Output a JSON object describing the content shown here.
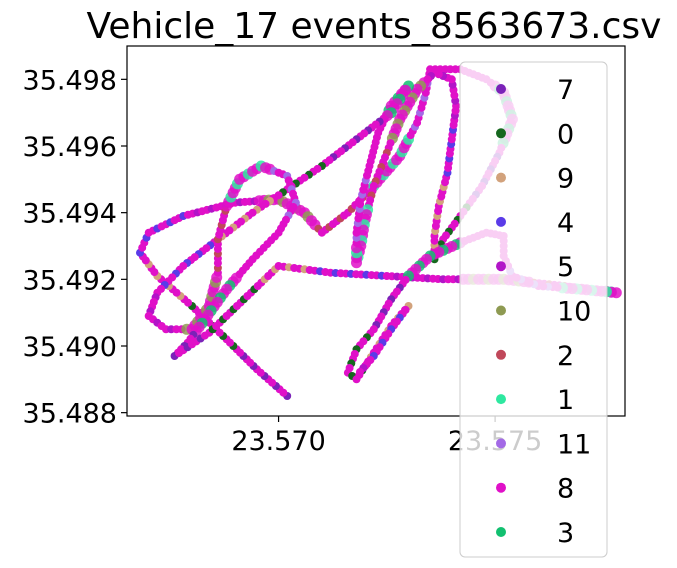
{
  "chart_data": {
    "type": "scatter",
    "title": "Vehicle_17 events_8563673.csv",
    "xlabel": "",
    "ylabel": "",
    "xlim": [
      23.5665,
      23.578
    ],
    "ylim": [
      35.4879,
      35.499
    ],
    "x_ticks": [
      23.57,
      23.575
    ],
    "x_tick_labels": [
      "23.570",
      "23.575"
    ],
    "y_ticks": [
      35.488,
      35.49,
      35.492,
      35.494,
      35.496,
      35.498
    ],
    "y_tick_labels": [
      "35.488",
      "35.490",
      "35.492",
      "35.494",
      "35.496",
      "35.498"
    ],
    "grid": false,
    "legend_position": "right",
    "legend": [
      {
        "label": "7",
        "color": "#7b22b8"
      },
      {
        "label": "0",
        "color": "#16671e"
      },
      {
        "label": "9",
        "color": "#d2a27c"
      },
      {
        "label": "4",
        "color": "#5a3be8"
      },
      {
        "label": "5",
        "color": "#b214c8"
      },
      {
        "label": "10",
        "color": "#8e9a52"
      },
      {
        "label": "2",
        "color": "#c0485a"
      },
      {
        "label": "1",
        "color": "#2ee8a0"
      },
      {
        "label": "11",
        "color": "#a36ae6"
      },
      {
        "label": "8",
        "color": "#e010c8"
      },
      {
        "label": "3",
        "color": "#12c070"
      }
    ],
    "track_waypoints": [
      [
        23.5702,
        35.4885
      ],
      [
        23.5695,
        35.4893
      ],
      [
        23.5688,
        35.4902
      ],
      [
        23.568,
        35.4912
      ],
      [
        23.5672,
        35.4921
      ],
      [
        23.5668,
        35.4928
      ],
      [
        23.567,
        35.4934
      ],
      [
        23.5678,
        35.4939
      ],
      [
        23.569,
        35.4943
      ],
      [
        23.57,
        35.4944
      ],
      [
        23.5706,
        35.494
      ],
      [
        23.571,
        35.4934
      ],
      [
        23.5716,
        35.494
      ],
      [
        23.5722,
        35.4948
      ],
      [
        23.5728,
        35.4957
      ],
      [
        23.5732,
        35.4967
      ],
      [
        23.5734,
        35.4976
      ],
      [
        23.5735,
        35.4983
      ],
      [
        23.5742,
        35.4983
      ],
      [
        23.5748,
        35.498
      ],
      [
        23.5752,
        35.4976
      ],
      [
        23.5754,
        35.4968
      ],
      [
        23.5751,
        35.4958
      ],
      [
        23.5747,
        35.4948
      ],
      [
        23.5742,
        35.4939
      ],
      [
        23.5738,
        35.4932
      ],
      [
        23.5736,
        35.4926
      ],
      [
        23.5736,
        35.4933
      ],
      [
        23.5737,
        35.4942
      ],
      [
        23.5739,
        35.4952
      ],
      [
        23.574,
        35.4962
      ],
      [
        23.5741,
        35.4972
      ],
      [
        23.574,
        35.498
      ],
      [
        23.5736,
        35.4982
      ],
      [
        23.5732,
        35.4977
      ],
      [
        23.5728,
        35.4968
      ],
      [
        23.5725,
        35.4958
      ],
      [
        23.5722,
        35.4948
      ],
      [
        23.572,
        35.4938
      ],
      [
        23.5719,
        35.493
      ],
      [
        23.5718,
        35.4925
      ],
      [
        23.5718,
        35.4934
      ],
      [
        23.5719,
        35.4944
      ],
      [
        23.5721,
        35.4954
      ],
      [
        23.5723,
        35.4964
      ],
      [
        23.5726,
        35.4972
      ],
      [
        23.573,
        35.4978
      ],
      [
        23.5726,
        35.497
      ],
      [
        23.5718,
        35.4962
      ],
      [
        23.571,
        35.4954
      ],
      [
        23.5702,
        35.4947
      ],
      [
        23.5694,
        35.494
      ],
      [
        23.5686,
        35.4932
      ],
      [
        23.5678,
        35.4924
      ],
      [
        23.5672,
        35.4916
      ],
      [
        23.567,
        35.4909
      ],
      [
        23.5674,
        35.4905
      ],
      [
        23.568,
        35.4905
      ],
      [
        23.5684,
        35.4912
      ],
      [
        23.5686,
        35.4922
      ],
      [
        23.5686,
        35.4932
      ],
      [
        23.5688,
        35.4942
      ],
      [
        23.5691,
        35.495
      ],
      [
        23.5696,
        35.4954
      ],
      [
        23.5702,
        35.4951
      ],
      [
        23.5704,
        35.4943
      ],
      [
        23.57,
        35.4934
      ],
      [
        23.5694,
        35.4926
      ],
      [
        23.5688,
        35.4917
      ],
      [
        23.5683,
        35.4908
      ],
      [
        23.5679,
        35.4901
      ],
      [
        23.5676,
        35.4897
      ],
      [
        23.5684,
        35.4904
      ],
      [
        23.5692,
        35.4914
      ],
      [
        23.57,
        35.4924
      ],
      [
        23.5712,
        35.4922
      ],
      [
        23.5725,
        35.4921
      ],
      [
        23.5738,
        35.492
      ],
      [
        23.5752,
        35.492
      ],
      [
        23.5766,
        35.4918
      ],
      [
        23.5778,
        35.4916
      ],
      [
        23.577,
        35.4917
      ],
      [
        23.576,
        35.4918
      ],
      [
        23.5754,
        35.4921
      ],
      [
        23.5752,
        35.4927
      ],
      [
        23.5752,
        35.4933
      ],
      [
        23.5748,
        35.4934
      ],
      [
        23.5742,
        35.4931
      ],
      [
        23.5735,
        35.4927
      ],
      [
        23.573,
        35.4921
      ],
      [
        23.5726,
        35.4914
      ],
      [
        23.5722,
        35.4905
      ],
      [
        23.5718,
        35.4899
      ],
      [
        23.5716,
        35.4892
      ],
      [
        23.5718,
        35.489
      ],
      [
        23.5722,
        35.4898
      ],
      [
        23.5726,
        35.4906
      ],
      [
        23.573,
        35.4912
      ],
      [
        23.5726,
        35.4905
      ],
      [
        23.5722,
        35.4897
      ],
      [
        23.5718,
        35.4891
      ]
    ]
  }
}
